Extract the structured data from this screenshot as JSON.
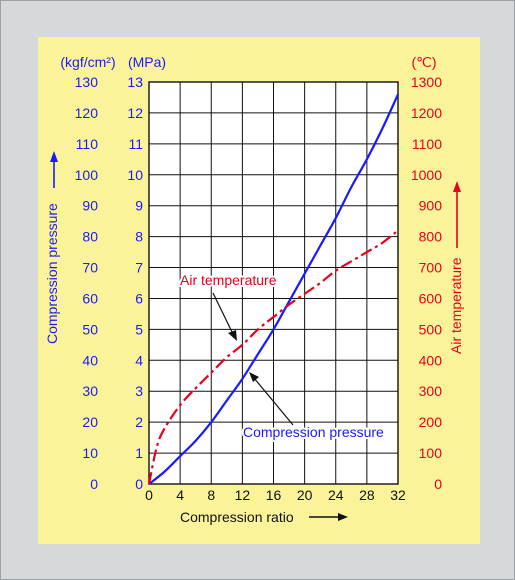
{
  "chart_data": {
    "type": "line",
    "xlabel": "Compression ratio",
    "left_axis": {
      "label": "Compression pressure",
      "unit_kgf": "(kgf/cm²)",
      "unit_mpa": "(MPa)",
      "kgf_ticks": [
        "130",
        "120",
        "110",
        "100",
        "90",
        "80",
        "70",
        "60",
        "50",
        "40",
        "30",
        "20",
        "10",
        "0"
      ],
      "mpa_ticks": [
        "13",
        "12",
        "11",
        "10",
        "9",
        "8",
        "7",
        "6",
        "5",
        "4",
        "3",
        "2",
        "1",
        "0"
      ],
      "ylim_mpa": [
        0,
        13
      ]
    },
    "right_axis": {
      "label": "Air temperature",
      "unit": "(℃)",
      "ticks": [
        "1300",
        "1200",
        "1100",
        "1000",
        "900",
        "800",
        "700",
        "600",
        "500",
        "400",
        "300",
        "200",
        "100",
        "0"
      ],
      "ylim": [
        0,
        1300
      ]
    },
    "x_ticks": [
      "0",
      "4",
      "8",
      "12",
      "16",
      "20",
      "24",
      "28",
      "32"
    ],
    "xlim": [
      0,
      32
    ],
    "grid": true,
    "series": [
      {
        "name": "Compression pressure",
        "axis": "left_mpa",
        "color": "#1a1aff",
        "style": "solid",
        "x": [
          0,
          2,
          4,
          6,
          8,
          10,
          12,
          14,
          16,
          18,
          20,
          22,
          24,
          26,
          28,
          30,
          32
        ],
        "y": [
          0,
          0.4,
          0.9,
          1.4,
          2.0,
          2.7,
          3.4,
          4.2,
          5.0,
          5.9,
          6.8,
          7.7,
          8.6,
          9.6,
          10.5,
          11.5,
          12.6
        ]
      },
      {
        "name": "Air temperature",
        "axis": "right",
        "color": "#e8001c",
        "style": "dashdot",
        "x": [
          0,
          1,
          2,
          4,
          6,
          8,
          10,
          12,
          14,
          16,
          18,
          20,
          22,
          24,
          26,
          28,
          30,
          32
        ],
        "y": [
          0,
          120,
          180,
          255,
          310,
          360,
          410,
          450,
          500,
          540,
          580,
          615,
          650,
          690,
          720,
          750,
          780,
          820
        ]
      }
    ],
    "annotations": [
      {
        "text": "Air temperature",
        "series": "Air temperature"
      },
      {
        "text": "Compression pressure",
        "series": "Compression pressure"
      }
    ]
  }
}
